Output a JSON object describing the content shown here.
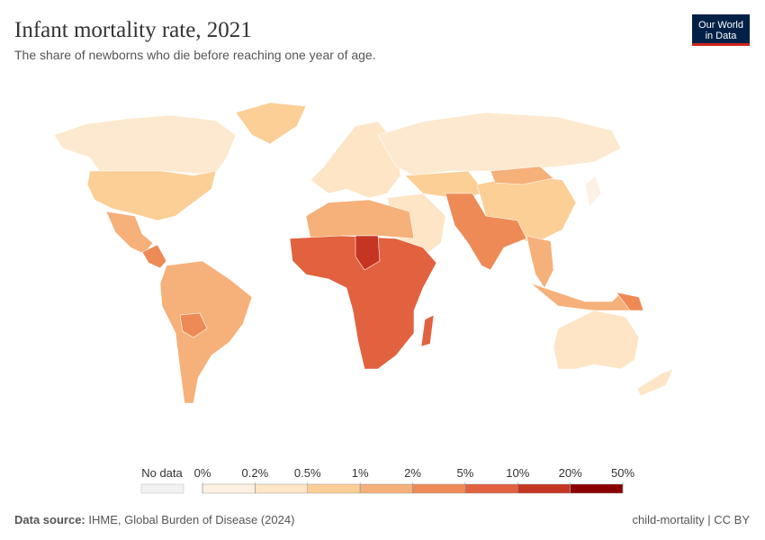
{
  "header": {
    "title": "Infant mortality rate, 2021",
    "subtitle": "The share of newborns who die before reaching one year of age.",
    "logo": [
      "Our World",
      "in Data"
    ]
  },
  "legend": {
    "no_data": "No data",
    "bins": [
      {
        "value": 0,
        "label": "0%"
      },
      {
        "value": 0.2,
        "label": "0.2%"
      },
      {
        "value": 0.5,
        "label": "0.5%"
      },
      {
        "value": 1,
        "label": "1%"
      },
      {
        "value": 2,
        "label": "2%"
      },
      {
        "value": 5,
        "label": "5%"
      },
      {
        "value": 10,
        "label": "10%"
      },
      {
        "value": 20,
        "label": "20%"
      },
      {
        "value": 50,
        "label": "50%"
      }
    ],
    "colors": [
      "#fdf1e4",
      "#fde5c6",
      "#fbcf96",
      "#f6b07a",
      "#ee8a56",
      "#e2613f",
      "#c63522",
      "#8a0000"
    ]
  },
  "footer": {
    "source_label": "Data source:",
    "source": "IHME, Global Burden of Disease (2024)",
    "slug": "child-mortality | CC BY"
  }
}
